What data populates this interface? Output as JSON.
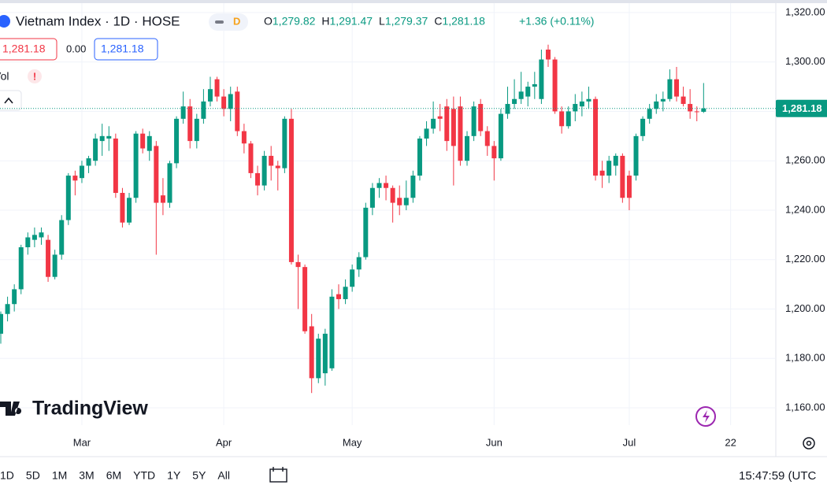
{
  "header": {
    "symbol": "Vietnam Index · 1D · HOSE",
    "badge": "D",
    "ohlc": [
      {
        "key": "O",
        "value": "1,279.82"
      },
      {
        "key": "H",
        "value": "1,291.47"
      },
      {
        "key": "L",
        "value": "1,279.37"
      },
      {
        "key": "C",
        "value": "1,281.18"
      }
    ],
    "change": "+1.36 (+0.11%)",
    "sell": "1,281.18",
    "spread": "0.00",
    "buy": "1,281.18",
    "volume": "Vol",
    "alert": "!"
  },
  "chart_data": {
    "type": "candlestick",
    "logo": "TradingView",
    "categories": [
      "",
      "",
      "",
      "",
      "",
      "",
      "",
      "",
      "",
      "",
      "",
      "",
      "Mar",
      "",
      "",
      "",
      "",
      "",
      "",
      "",
      "",
      "",
      "",
      "",
      "",
      "",
      "",
      "",
      "",
      "",
      "",
      "",
      "",
      "Apr",
      "",
      "",
      "",
      "",
      "",
      "",
      "",
      "",
      "",
      "",
      "",
      "",
      "",
      "",
      "",
      "",
      "",
      "",
      "May",
      "",
      "",
      "",
      "",
      "",
      "",
      "",
      "",
      "",
      "",
      "",
      "",
      "",
      "",
      "",
      "",
      "",
      "",
      "",
      "",
      "Jun",
      "",
      "",
      "",
      "",
      "",
      "",
      "",
      "",
      "",
      "",
      "",
      "",
      "",
      "",
      "",
      "",
      "",
      "",
      "",
      "Jul",
      "",
      "",
      "",
      "",
      "",
      "",
      "",
      "",
      "",
      "",
      "",
      "",
      "",
      "",
      "22"
    ],
    "open": [
      1190,
      1198,
      1202,
      1208,
      1225,
      1228,
      1229,
      1228,
      1213,
      1222,
      1236,
      1254,
      1253,
      1258,
      1260,
      1268,
      1269,
      1269,
      1247,
      1235,
      1245,
      1271,
      1264,
      1266,
      1246,
      1243,
      1259,
      1277,
      1282,
      1268,
      1277,
      1284,
      1293,
      1286,
      1281,
      1288,
      1272,
      1267,
      1255,
      1250,
      1262,
      1258,
      1257,
      1277,
      1219,
      1217,
      1193,
      1172,
      1174,
      1176,
      1206,
      1204,
      1209,
      1216,
      1221,
      1241,
      1249,
      1251,
      1249,
      1245,
      1242,
      1245,
      1254,
      1269,
      1273,
      1278,
      1282,
      1281,
      1282,
      1260,
      1270,
      1283,
      1272,
      1266,
      1261,
      1279,
      1283,
      1285,
      1286,
      1290,
      1285,
      1305,
      1301,
      1280,
      1274,
      1280,
      1282,
      1284,
      1285,
      1256,
      1254,
      1258,
      1262,
      1254,
      1254,
      1270,
      1277,
      1281,
      1284,
      1285,
      1293,
      1286,
      1283,
      1280,
      1279.82,
      null,
      null,
      null,
      null
    ],
    "high": [
      1199,
      1205,
      1210,
      1226,
      1231,
      1233,
      1233,
      1230,
      1224,
      1238,
      1255,
      1256,
      1260,
      1262,
      1271,
      1275,
      1274,
      1271,
      1249,
      1247,
      1272,
      1273,
      1272,
      1268,
      1253,
      1260,
      1278,
      1288,
      1285,
      1279,
      1289,
      1294,
      1294,
      1289,
      1290,
      1290,
      1275,
      1268,
      1258,
      1264,
      1266,
      1260,
      1278,
      1281,
      1222,
      1218,
      1198,
      1190,
      1192,
      1208,
      1210,
      1212,
      1218,
      1223,
      1243,
      1251,
      1253,
      1254,
      1250,
      1250,
      1252,
      1256,
      1270,
      1276,
      1284,
      1283,
      1285,
      1286,
      1286,
      1272,
      1284,
      1285,
      1274,
      1268,
      1281,
      1290,
      1293,
      1296,
      1292,
      1296,
      1305,
      1307,
      1302,
      1282,
      1282,
      1287,
      1288,
      1290,
      1286,
      1260,
      1262,
      1263,
      1263,
      1256,
      1271,
      1278,
      1283,
      1287,
      1288,
      1297,
      1298,
      1290,
      1289,
      1282,
      1291.47,
      null,
      null,
      null,
      null
    ],
    "low": [
      1186,
      1195,
      1199,
      1206,
      1222,
      1225,
      1226,
      1211,
      1212,
      1220,
      1234,
      1246,
      1251,
      1255,
      1258,
      1262,
      1264,
      1245,
      1233,
      1234,
      1243,
      1263,
      1260,
      1222,
      1238,
      1241,
      1257,
      1275,
      1265,
      1265,
      1275,
      1282,
      1284,
      1278,
      1276,
      1270,
      1263,
      1253,
      1246,
      1248,
      1252,
      1248,
      1255,
      1218,
      1200,
      1190,
      1166,
      1170,
      1169,
      1175,
      1200,
      1202,
      1207,
      1213,
      1220,
      1238,
      1245,
      1244,
      1235,
      1238,
      1240,
      1243,
      1252,
      1266,
      1271,
      1272,
      1264,
      1250,
      1258,
      1258,
      1268,
      1270,
      1262,
      1252,
      1260,
      1277,
      1281,
      1283,
      1282,
      1285,
      1283,
      1298,
      1279,
      1271,
      1273,
      1276,
      1278,
      1281,
      1252,
      1249,
      1251,
      1254,
      1243,
      1240,
      1252,
      1268,
      1275,
      1279,
      1280,
      1284,
      1284,
      1282,
      1277,
      1276,
      1279.37,
      null,
      null,
      null,
      null
    ],
    "close": [
      1198,
      1202,
      1208,
      1225,
      1229,
      1230,
      1231,
      1213,
      1222,
      1236,
      1254,
      1252,
      1258,
      1261,
      1269,
      1270,
      1270,
      1247,
      1235,
      1245,
      1271,
      1265,
      1270,
      1243,
      1243,
      1259,
      1277,
      1282,
      1268,
      1277,
      1284,
      1289,
      1286,
      1281,
      1287,
      1272,
      1267,
      1255,
      1250,
      1262,
      1258,
      1257,
      1277,
      1219,
      1217,
      1191,
      1172,
      1188,
      1190,
      1205,
      1204,
      1209,
      1216,
      1221,
      1241,
      1249,
      1251,
      1249,
      1243,
      1242,
      1245,
      1254,
      1269,
      1273,
      1277,
      1277,
      1268,
      1266,
      1260,
      1270,
      1282,
      1272,
      1266,
      1261,
      1279,
      1283,
      1285,
      1288,
      1290,
      1291,
      1301,
      1301,
      1280,
      1274,
      1280,
      1283,
      1284,
      1285,
      1254,
      1254,
      1260,
      1262,
      1245,
      1245,
      1270,
      1277,
      1281,
      1284,
      1285,
      1293,
      1286,
      1283,
      1280,
      1279.82,
      1281.18,
      null,
      null,
      null,
      null
    ],
    "up_color": "#089981",
    "down_color": "#f23645",
    "ylim": [
      1153,
      1323.8
    ],
    "yticks": [
      {
        "value": 1160,
        "label": "1,160.00"
      },
      {
        "value": 1180,
        "label": "1,180.00"
      },
      {
        "value": 1200,
        "label": "1,200.00"
      },
      {
        "value": 1220,
        "label": "1,220.00"
      },
      {
        "value": 1240,
        "label": "1,240.00"
      },
      {
        "value": 1260,
        "label": "1,260.00"
      },
      {
        "value": 1280,
        "label": "1,280.00"
      },
      {
        "value": 1300,
        "label": "1,300.00"
      },
      {
        "value": 1320,
        "label": "1,320.00"
      }
    ],
    "last_price": {
      "value": 1281.18,
      "label": "1,281.18"
    },
    "grid": true
  },
  "toolbar": {
    "ranges": [
      "1D",
      "5D",
      "1M",
      "3M",
      "6M",
      "YTD",
      "1Y",
      "5Y",
      "All"
    ],
    "clock": "15:47:59 (UTC"
  }
}
